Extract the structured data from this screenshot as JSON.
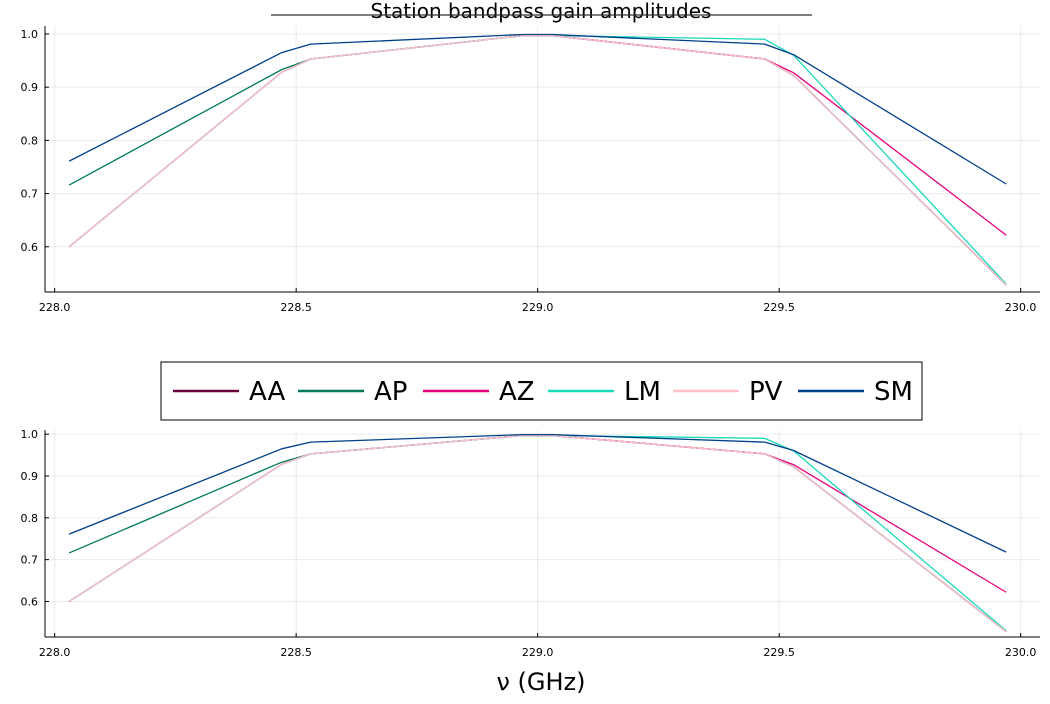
{
  "chart_data": [
    {
      "type": "line",
      "title": "Station bandpass gain amplitudes",
      "xlabel": "",
      "ylabel": "",
      "xlim": [
        227.98,
        230.04
      ],
      "ylim": [
        0.515,
        1.015
      ],
      "xticks": [
        228.0,
        228.5,
        229.0,
        229.5,
        230.0
      ],
      "xtick_labels": [
        "228.0",
        "228.5",
        "229.0",
        "229.5",
        "230.0"
      ],
      "yticks": [
        0.6,
        0.7,
        0.8,
        0.9,
        1.0
      ],
      "ytick_labels": [
        "0.6",
        "0.7",
        "0.8",
        "0.9",
        "1.0"
      ],
      "grid": true,
      "legend": "none",
      "x": [
        228.03,
        228.47,
        228.53,
        228.97,
        229.03,
        229.47,
        229.53,
        229.97
      ],
      "series": [
        {
          "name": "AA",
          "color": "#6b003a",
          "values": [
            0.6,
            0.928,
            0.953,
            0.997,
            0.997,
            0.953,
            0.922,
            0.528
          ]
        },
        {
          "name": "AP",
          "color": "#007a5e",
          "values": [
            0.716,
            0.933,
            0.953,
            0.997,
            0.997,
            0.953,
            0.922,
            0.528
          ]
        },
        {
          "name": "AZ",
          "color": "#e6007e",
          "values": [
            0.6,
            0.928,
            0.953,
            0.997,
            0.997,
            0.953,
            0.927,
            0.622
          ]
        },
        {
          "name": "LM",
          "color": "#1ad9b8",
          "values": [
            0.6,
            0.928,
            0.953,
            0.997,
            0.997,
            0.99,
            0.96,
            0.53
          ]
        },
        {
          "name": "PV",
          "color": "#ffc0cb",
          "values": [
            0.6,
            0.928,
            0.953,
            0.997,
            0.997,
            0.953,
            0.922,
            0.528
          ]
        },
        {
          "name": "SM",
          "color": "#003f8a",
          "values": [
            0.761,
            0.965,
            0.981,
            0.999,
            0.999,
            0.981,
            0.961,
            0.718
          ]
        }
      ]
    },
    {
      "type": "line",
      "title": "",
      "xlabel": "ν (GHz)",
      "ylabel": "",
      "xlim": [
        227.98,
        230.04
      ],
      "ylim": [
        0.515,
        1.01
      ],
      "xticks": [
        228.0,
        228.5,
        229.0,
        229.5,
        230.0
      ],
      "xtick_labels": [
        "228.0",
        "228.5",
        "229.0",
        "229.5",
        "230.0"
      ],
      "yticks": [
        0.6,
        0.7,
        0.8,
        0.9,
        1.0
      ],
      "ytick_labels": [
        "0.6",
        "0.7",
        "0.8",
        "0.9",
        "1.0"
      ],
      "grid": true,
      "legend": "top, horizontal",
      "x": [
        228.03,
        228.47,
        228.53,
        228.97,
        229.03,
        229.47,
        229.53,
        229.97
      ],
      "series": [
        {
          "name": "AA",
          "color": "#6b003a",
          "values": [
            0.6,
            0.928,
            0.953,
            0.997,
            0.997,
            0.953,
            0.922,
            0.528
          ]
        },
        {
          "name": "AP",
          "color": "#007a5e",
          "values": [
            0.716,
            0.933,
            0.953,
            0.997,
            0.997,
            0.953,
            0.922,
            0.528
          ]
        },
        {
          "name": "AZ",
          "color": "#e6007e",
          "values": [
            0.6,
            0.928,
            0.953,
            0.997,
            0.997,
            0.953,
            0.927,
            0.622
          ]
        },
        {
          "name": "LM",
          "color": "#1ad9b8",
          "values": [
            0.6,
            0.928,
            0.953,
            0.997,
            0.997,
            0.99,
            0.96,
            0.53
          ]
        },
        {
          "name": "PV",
          "color": "#ffc0cb",
          "values": [
            0.6,
            0.928,
            0.953,
            0.997,
            0.997,
            0.953,
            0.922,
            0.528
          ]
        },
        {
          "name": "SM",
          "color": "#003f8a",
          "values": [
            0.761,
            0.965,
            0.981,
            0.999,
            0.999,
            0.981,
            0.961,
            0.718
          ]
        }
      ]
    }
  ]
}
